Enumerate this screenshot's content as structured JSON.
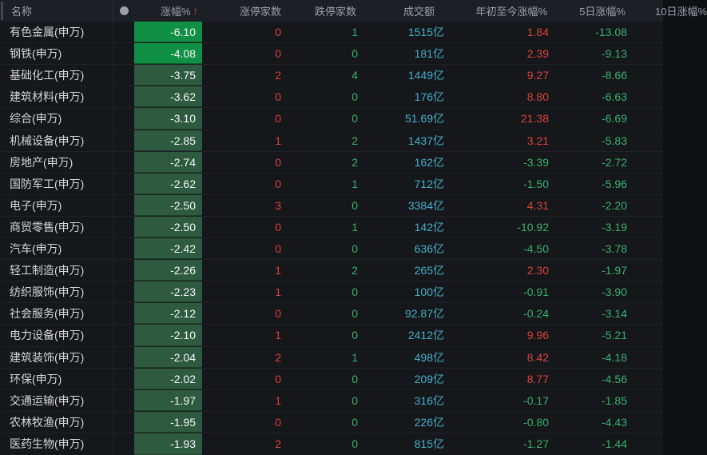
{
  "header": {
    "name": "名称",
    "change": "涨幅%",
    "sort_arrow": "↑",
    "limit_up": "涨停家数",
    "limit_down": "跌停家数",
    "turnover": "成交额",
    "ytd": "年初至今涨幅%",
    "d5": "5日涨幅%",
    "next_partial": "10日涨幅%"
  },
  "colors": {
    "up_red": "#d7433b",
    "down_green": "#38b06c",
    "turnover_cyan": "#46aec6",
    "cell_strong_green": "#0f9044",
    "cell_weak_green": "#2e5b40"
  },
  "rows": [
    {
      "name": "有色金属(申万)",
      "change": "-6.10",
      "limit_up": "0",
      "limit_down": "1",
      "turnover": "1515亿",
      "ytd": "1.84",
      "d5": "-13.08"
    },
    {
      "name": "钢铁(申万)",
      "change": "-4.08",
      "limit_up": "0",
      "limit_down": "0",
      "turnover": "181亿",
      "ytd": "2.39",
      "d5": "-9.13"
    },
    {
      "name": "基础化工(申万)",
      "change": "-3.75",
      "limit_up": "2",
      "limit_down": "4",
      "turnover": "1449亿",
      "ytd": "9.27",
      "d5": "-8.66"
    },
    {
      "name": "建筑材料(申万)",
      "change": "-3.62",
      "limit_up": "0",
      "limit_down": "0",
      "turnover": "176亿",
      "ytd": "8.80",
      "d5": "-6.63"
    },
    {
      "name": "综合(申万)",
      "change": "-3.10",
      "limit_up": "0",
      "limit_down": "0",
      "turnover": "51.69亿",
      "ytd": "21.38",
      "d5": "-6.69"
    },
    {
      "name": "机械设备(申万)",
      "change": "-2.85",
      "limit_up": "1",
      "limit_down": "2",
      "turnover": "1437亿",
      "ytd": "3.21",
      "d5": "-5.83"
    },
    {
      "name": "房地产(申万)",
      "change": "-2.74",
      "limit_up": "0",
      "limit_down": "2",
      "turnover": "162亿",
      "ytd": "-3.39",
      "d5": "-2.72"
    },
    {
      "name": "国防军工(申万)",
      "change": "-2.62",
      "limit_up": "0",
      "limit_down": "1",
      "turnover": "712亿",
      "ytd": "-1.50",
      "d5": "-5.96"
    },
    {
      "name": "电子(申万)",
      "change": "-2.50",
      "limit_up": "3",
      "limit_down": "0",
      "turnover": "3384亿",
      "ytd": "4.31",
      "d5": "-2.20"
    },
    {
      "name": "商贸零售(申万)",
      "change": "-2.50",
      "limit_up": "0",
      "limit_down": "1",
      "turnover": "142亿",
      "ytd": "-10.92",
      "d5": "-3.19"
    },
    {
      "name": "汽车(申万)",
      "change": "-2.42",
      "limit_up": "0",
      "limit_down": "0",
      "turnover": "636亿",
      "ytd": "-4.50",
      "d5": "-3.78"
    },
    {
      "name": "轻工制造(申万)",
      "change": "-2.26",
      "limit_up": "1",
      "limit_down": "2",
      "turnover": "265亿",
      "ytd": "2.30",
      "d5": "-1.97"
    },
    {
      "name": "纺织服饰(申万)",
      "change": "-2.23",
      "limit_up": "1",
      "limit_down": "0",
      "turnover": "100亿",
      "ytd": "-0.91",
      "d5": "-3.90"
    },
    {
      "name": "社会服务(申万)",
      "change": "-2.12",
      "limit_up": "0",
      "limit_down": "0",
      "turnover": "92.87亿",
      "ytd": "-0.24",
      "d5": "-3.14"
    },
    {
      "name": "电力设备(申万)",
      "change": "-2.10",
      "limit_up": "1",
      "limit_down": "0",
      "turnover": "2412亿",
      "ytd": "9.96",
      "d5": "-5.21"
    },
    {
      "name": "建筑装饰(申万)",
      "change": "-2.04",
      "limit_up": "2",
      "limit_down": "1",
      "turnover": "498亿",
      "ytd": "8.42",
      "d5": "-4.18"
    },
    {
      "name": "环保(申万)",
      "change": "-2.02",
      "limit_up": "0",
      "limit_down": "0",
      "turnover": "209亿",
      "ytd": "8.77",
      "d5": "-4.56"
    },
    {
      "name": "交通运输(申万)",
      "change": "-1.97",
      "limit_up": "1",
      "limit_down": "0",
      "turnover": "316亿",
      "ytd": "-0.17",
      "d5": "-1.85"
    },
    {
      "name": "农林牧渔(申万)",
      "change": "-1.95",
      "limit_up": "0",
      "limit_down": "0",
      "turnover": "226亿",
      "ytd": "-0.80",
      "d5": "-4.43"
    },
    {
      "name": "医药生物(申万)",
      "change": "-1.93",
      "limit_up": "2",
      "limit_down": "0",
      "turnover": "815亿",
      "ytd": "-1.27",
      "d5": "-1.44"
    }
  ]
}
